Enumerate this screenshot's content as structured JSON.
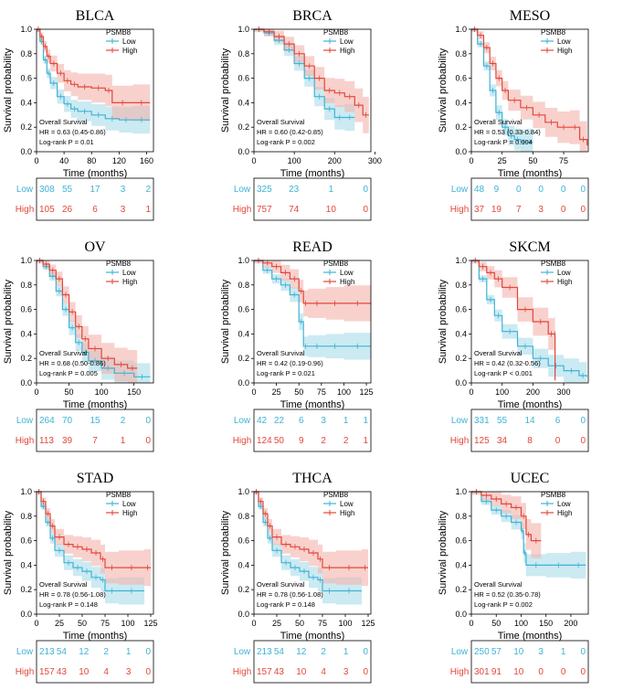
{
  "colors": {
    "low": "#3fb3d6",
    "high": "#e3473a",
    "low_fill": "#a9dcea",
    "high_fill": "#f4b2ab",
    "axis": "#000000"
  },
  "common": {
    "ylabel": "Survival probability",
    "xlabel": "Time (months)",
    "legend_title": "PSMB8",
    "legend_low": "Low",
    "legend_high": "High",
    "stat_title": "Overall Survival",
    "risk_low": "Low",
    "risk_high": "High",
    "yticks": [
      "0.0",
      "0.2",
      "0.4",
      "0.6",
      "0.8",
      "1.0"
    ]
  },
  "chart_data": [
    {
      "type": "line",
      "title": "BLCA",
      "xlabel": "Time (months)",
      "ylabel": "Survival probability",
      "xlim": [
        0,
        170
      ],
      "xticks": [
        0,
        40,
        80,
        120,
        160
      ],
      "ylim": [
        0,
        1
      ],
      "hr": "HR = 0.63 (0.45-0.86)",
      "p": "Log-rank P = 0.01",
      "series": [
        {
          "name": "Low",
          "x": [
            0,
            5,
            10,
            15,
            20,
            30,
            40,
            50,
            60,
            80,
            100,
            120,
            140,
            165
          ],
          "y": [
            1,
            0.9,
            0.75,
            0.64,
            0.56,
            0.45,
            0.39,
            0.35,
            0.33,
            0.3,
            0.27,
            0.26,
            0.26,
            0.26
          ]
        },
        {
          "name": "High",
          "x": [
            0,
            5,
            10,
            15,
            20,
            30,
            40,
            50,
            60,
            80,
            100,
            110,
            140,
            165
          ],
          "y": [
            1,
            0.94,
            0.86,
            0.78,
            0.72,
            0.64,
            0.58,
            0.55,
            0.53,
            0.52,
            0.5,
            0.4,
            0.4,
            0.4
          ]
        }
      ],
      "risk_low": [
        "308",
        "55",
        "17",
        "3",
        "2"
      ],
      "risk_high": [
        "105",
        "26",
        "6",
        "3",
        "1"
      ]
    },
    {
      "type": "line",
      "title": "BRCA",
      "xlabel": "Time (months)",
      "ylabel": "Survival probability",
      "xlim": [
        0,
        290
      ],
      "xticks": [
        0,
        100,
        200,
        300
      ],
      "ylim": [
        0,
        1
      ],
      "hr": "HR = 0.60 (0.42-0.85)",
      "p": "Log-rank P = 0.002",
      "series": [
        {
          "name": "Low",
          "x": [
            0,
            25,
            50,
            75,
            100,
            125,
            150,
            175,
            200,
            225,
            250
          ],
          "y": [
            1,
            0.97,
            0.91,
            0.83,
            0.72,
            0.6,
            0.45,
            0.35,
            0.28,
            0.28,
            0.28
          ]
        },
        {
          "name": "High",
          "x": [
            0,
            25,
            50,
            75,
            100,
            125,
            150,
            175,
            200,
            225,
            250,
            270,
            285
          ],
          "y": [
            1,
            0.98,
            0.94,
            0.88,
            0.8,
            0.7,
            0.6,
            0.5,
            0.48,
            0.45,
            0.38,
            0.3,
            0.3
          ]
        }
      ],
      "risk_low": [
        "325",
        "23",
        "1",
        "0"
      ],
      "risk_high": [
        "757",
        "74",
        "10",
        "0"
      ]
    },
    {
      "type": "line",
      "title": "MESO",
      "xlabel": "Time (months)",
      "ylabel": "Survival probability",
      "xlim": [
        0,
        95
      ],
      "xticks": [
        0,
        25,
        50,
        75
      ],
      "ylim": [
        0,
        1
      ],
      "hr": "HR = 0.53 (0.33-0.84)",
      "p": "Log-rank P = 0.004",
      "series": [
        {
          "name": "Low",
          "x": [
            0,
            5,
            10,
            15,
            20,
            25,
            30,
            35,
            40,
            45,
            50
          ],
          "y": [
            1,
            0.88,
            0.7,
            0.5,
            0.32,
            0.2,
            0.13,
            0.1,
            0.08,
            0.08,
            0.08
          ]
        },
        {
          "name": "High",
          "x": [
            0,
            5,
            10,
            15,
            20,
            25,
            30,
            40,
            50,
            60,
            70,
            80,
            88,
            94
          ],
          "y": [
            1,
            0.95,
            0.85,
            0.72,
            0.6,
            0.5,
            0.42,
            0.36,
            0.3,
            0.24,
            0.2,
            0.2,
            0.1,
            0.05
          ]
        }
      ],
      "risk_low": [
        "48",
        "9",
        "0",
        "0",
        "0",
        "0"
      ],
      "risk_high": [
        "37",
        "19",
        "7",
        "3",
        "0",
        "0"
      ]
    },
    {
      "type": "line",
      "title": "OV",
      "xlabel": "Time (months)",
      "ylabel": "Survival probability",
      "xlim": [
        0,
        180
      ],
      "xticks": [
        0,
        50,
        100,
        150
      ],
      "ylim": [
        0,
        1
      ],
      "hr": "HR = 0.68 (0.50-0.86)",
      "p": "Log-rank P = 0.005",
      "series": [
        {
          "name": "Low",
          "x": [
            0,
            10,
            20,
            30,
            40,
            50,
            60,
            70,
            80,
            100,
            120,
            150,
            175
          ],
          "y": [
            1,
            0.95,
            0.87,
            0.75,
            0.6,
            0.45,
            0.33,
            0.25,
            0.18,
            0.12,
            0.08,
            0.05,
            0.05
          ]
        },
        {
          "name": "High",
          "x": [
            0,
            10,
            20,
            30,
            40,
            50,
            60,
            70,
            80,
            100,
            120,
            140,
            155
          ],
          "y": [
            1,
            0.97,
            0.92,
            0.85,
            0.72,
            0.58,
            0.46,
            0.36,
            0.28,
            0.2,
            0.15,
            0.12,
            0.12
          ]
        }
      ],
      "risk_low": [
        "264",
        "70",
        "15",
        "2",
        "0"
      ],
      "risk_high": [
        "113",
        "39",
        "7",
        "1",
        "0"
      ]
    },
    {
      "type": "line",
      "title": "READ",
      "xlabel": "Time (months)",
      "ylabel": "Survival probability",
      "xlim": [
        0,
        130
      ],
      "xticks": [
        0,
        25,
        50,
        75,
        100,
        125
      ],
      "ylim": [
        0,
        1
      ],
      "hr": "HR = 0.42 (0.19-0.96)",
      "p": "Log-rank P = 0.021",
      "series": [
        {
          "name": "Low",
          "x": [
            0,
            10,
            20,
            30,
            40,
            50,
            55,
            60,
            80,
            100,
            130
          ],
          "y": [
            1,
            0.92,
            0.85,
            0.8,
            0.72,
            0.5,
            0.3,
            0.3,
            0.3,
            0.3,
            0.3
          ]
        },
        {
          "name": "High",
          "x": [
            0,
            10,
            20,
            30,
            40,
            50,
            55,
            60,
            80,
            100,
            130
          ],
          "y": [
            1,
            0.98,
            0.95,
            0.9,
            0.85,
            0.75,
            0.65,
            0.65,
            0.65,
            0.65,
            0.65
          ]
        }
      ],
      "risk_low": [
        "42",
        "22",
        "6",
        "3",
        "1",
        "1"
      ],
      "risk_high": [
        "124",
        "50",
        "9",
        "2",
        "2",
        "1"
      ]
    },
    {
      "type": "line",
      "title": "SKCM",
      "xlabel": "Time (months)",
      "ylabel": "Survival probability",
      "xlim": [
        0,
        380
      ],
      "xticks": [
        0,
        100,
        200,
        300
      ],
      "ylim": [
        0,
        1
      ],
      "hr": "HR = 0.42 (0.32-0.56)",
      "p": "Log-rank P < 0.001",
      "series": [
        {
          "name": "Low",
          "x": [
            0,
            25,
            50,
            75,
            100,
            150,
            200,
            250,
            300,
            350,
            375
          ],
          "y": [
            1,
            0.85,
            0.68,
            0.55,
            0.42,
            0.3,
            0.2,
            0.14,
            0.1,
            0.06,
            0.05
          ]
        },
        {
          "name": "High",
          "x": [
            0,
            25,
            50,
            75,
            100,
            150,
            200,
            250,
            270,
            272
          ],
          "y": [
            1,
            0.95,
            0.9,
            0.85,
            0.78,
            0.6,
            0.5,
            0.4,
            0.4,
            0.02
          ]
        }
      ],
      "risk_low": [
        "331",
        "55",
        "14",
        "6",
        "0"
      ],
      "risk_high": [
        "125",
        "34",
        "8",
        "0",
        "0"
      ]
    },
    {
      "type": "line",
      "title": "STAD",
      "xlabel": "Time (months)",
      "ylabel": "Survival probability",
      "xlim": [
        0,
        128
      ],
      "xticks": [
        0,
        25,
        50,
        75,
        100,
        125
      ],
      "ylim": [
        0,
        1
      ],
      "hr": "HR = 0.78 (0.56-1.08)",
      "p": "Log-rank P = 0.148",
      "series": [
        {
          "name": "Low",
          "x": [
            0,
            5,
            10,
            15,
            20,
            30,
            40,
            50,
            60,
            70,
            75,
            90,
            118
          ],
          "y": [
            1,
            0.88,
            0.75,
            0.62,
            0.52,
            0.42,
            0.38,
            0.35,
            0.3,
            0.28,
            0.19,
            0.19,
            0.19
          ]
        },
        {
          "name": "High",
          "x": [
            0,
            5,
            10,
            15,
            20,
            30,
            40,
            50,
            60,
            70,
            75,
            90,
            118,
            125
          ],
          "y": [
            1,
            0.92,
            0.82,
            0.72,
            0.63,
            0.57,
            0.55,
            0.53,
            0.5,
            0.45,
            0.38,
            0.38,
            0.38,
            0.38
          ]
        }
      ],
      "risk_low": [
        "213",
        "54",
        "12",
        "2",
        "1",
        "0"
      ],
      "risk_high": [
        "157",
        "43",
        "10",
        "4",
        "3",
        "0"
      ]
    },
    {
      "type": "line",
      "title": "THCA",
      "xlabel": "Time (months)",
      "ylabel": "Survival probability",
      "xlim": [
        0,
        128
      ],
      "xticks": [
        0,
        25,
        50,
        75,
        100,
        125
      ],
      "ylim": [
        0,
        1
      ],
      "hr": "HR = 0.78 (0.56-1.08)",
      "p": "Log-rank P = 0.148",
      "series": [
        {
          "name": "Low",
          "x": [
            0,
            5,
            10,
            15,
            20,
            30,
            40,
            50,
            60,
            70,
            75,
            90,
            118
          ],
          "y": [
            1,
            0.88,
            0.75,
            0.62,
            0.52,
            0.42,
            0.38,
            0.35,
            0.3,
            0.28,
            0.19,
            0.19,
            0.19
          ]
        },
        {
          "name": "High",
          "x": [
            0,
            5,
            10,
            15,
            20,
            30,
            40,
            50,
            60,
            70,
            75,
            90,
            118,
            125
          ],
          "y": [
            1,
            0.92,
            0.82,
            0.72,
            0.63,
            0.57,
            0.55,
            0.53,
            0.5,
            0.45,
            0.38,
            0.38,
            0.38,
            0.38
          ]
        }
      ],
      "risk_low": [
        "213",
        "54",
        "12",
        "2",
        "1",
        "0"
      ],
      "risk_high": [
        "157",
        "43",
        "10",
        "4",
        "3",
        "0"
      ]
    },
    {
      "type": "line",
      "title": "UCEC",
      "xlabel": "Time (months)",
      "ylabel": "Survival probability",
      "xlim": [
        0,
        235
      ],
      "xticks": [
        0,
        50,
        100,
        150,
        200
      ],
      "ylim": [
        0,
        1
      ],
      "hr": "HR = 0.52 (0.35-0.78)",
      "p": "Log-rank P = 0.002",
      "series": [
        {
          "name": "Low",
          "x": [
            0,
            20,
            40,
            60,
            80,
            100,
            105,
            110,
            150,
            200,
            230
          ],
          "y": [
            1,
            0.92,
            0.85,
            0.8,
            0.75,
            0.68,
            0.5,
            0.4,
            0.4,
            0.4,
            0.4
          ]
        },
        {
          "name": "High",
          "x": [
            0,
            20,
            40,
            60,
            80,
            100,
            110,
            120,
            140
          ],
          "y": [
            1,
            0.97,
            0.94,
            0.9,
            0.87,
            0.8,
            0.65,
            0.6,
            0.6
          ]
        }
      ],
      "risk_low": [
        "250",
        "57",
        "10",
        "3",
        "1",
        "0"
      ],
      "risk_high": [
        "301",
        "91",
        "10",
        "0",
        "0",
        "0"
      ]
    }
  ]
}
